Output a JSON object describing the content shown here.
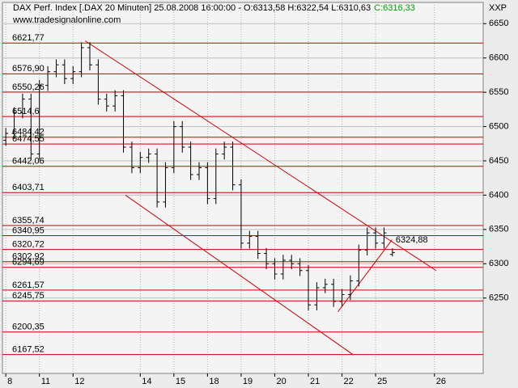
{
  "chart_data": {
    "type": "ohlc",
    "title": "DAX Perf. Index [.DAX  20 Minuten] 25.08.2008 16:00:00 - O:6313,58 H:6322,54 L:6310,63",
    "close_label": "C:6316,33",
    "subtitle": "www.tradesignalonline.com",
    "corner_label": "XXP",
    "color": "#000000",
    "line_color": "#cc0000",
    "close_label_color": "#00a000",
    "grid": true,
    "xlim": [
      -0.1,
      14.2
    ],
    "ylim": [
      6140,
      6681
    ],
    "xticks": [
      {
        "value": 0,
        "label": "8"
      },
      {
        "value": 1,
        "label": "11"
      },
      {
        "value": 2,
        "label": "12"
      },
      {
        "value": 4,
        "label": "14"
      },
      {
        "value": 5,
        "label": "15"
      },
      {
        "value": 6,
        "label": "18"
      },
      {
        "value": 7,
        "label": "19"
      },
      {
        "value": 8,
        "label": "20"
      },
      {
        "value": 9,
        "label": "21"
      },
      {
        "value": 10,
        "label": "22"
      },
      {
        "value": 11,
        "label": "25"
      },
      {
        "value": 12.75,
        "label": "26"
      }
    ],
    "yticks": [
      6250,
      6300,
      6350,
      6400,
      6450,
      6500,
      6550,
      6600,
      6650
    ],
    "x": [
      0,
      0.25,
      0.5,
      0.75,
      1,
      1.25,
      1.5,
      1.75,
      2,
      2.25,
      2.5,
      2.75,
      3,
      3.25,
      3.5,
      3.75,
      4,
      4.25,
      4.5,
      4.75,
      5,
      5.25,
      5.5,
      5.75,
      6,
      6.25,
      6.5,
      6.75,
      7,
      7.25,
      7.5,
      7.75,
      8,
      8.25,
      8.5,
      8.75,
      9,
      9.25,
      9.5,
      9.75,
      10,
      10.25,
      10.5,
      10.75,
      11,
      11.25,
      11.5
    ],
    "open": [
      6480,
      6490,
      6520,
      6540,
      6460,
      6560,
      6580,
      6590,
      6570,
      6580,
      6615,
      6590,
      6540,
      6530,
      6545,
      6470,
      6440,
      6455,
      6460,
      6390,
      6440,
      6500,
      6470,
      6430,
      6440,
      6395,
      6460,
      6470,
      6415,
      6330,
      6340,
      6315,
      6300,
      6285,
      6305,
      6300,
      6290,
      6240,
      6265,
      6270,
      6245,
      6255,
      6275,
      6320,
      6345,
      6330,
      6313.58
    ],
    "high": [
      6498,
      6528,
      6548,
      6548,
      6568,
      6588,
      6598,
      6598,
      6588,
      6623,
      6623,
      6598,
      6548,
      6553,
      6553,
      6478,
      6463,
      6468,
      6468,
      6448,
      6508,
      6508,
      6478,
      6448,
      6448,
      6468,
      6478,
      6478,
      6423,
      6348,
      6348,
      6323,
      6308,
      6313,
      6313,
      6308,
      6298,
      6273,
      6278,
      6278,
      6263,
      6283,
      6328,
      6353,
      6353,
      6353,
      6322.54
    ],
    "low": [
      6472,
      6482,
      6512,
      6452,
      6452,
      6552,
      6572,
      6562,
      6562,
      6572,
      6582,
      6532,
      6522,
      6522,
      6462,
      6432,
      6432,
      6447,
      6382,
      6382,
      6432,
      6462,
      6422,
      6422,
      6387,
      6387,
      6452,
      6407,
      6322,
      6322,
      6307,
      6292,
      6277,
      6277,
      6292,
      6282,
      6232,
      6232,
      6257,
      6237,
      6237,
      6247,
      6267,
      6312,
      6322,
      6322,
      6310.63
    ],
    "close": [
      6490,
      6520,
      6540,
      6460,
      6560,
      6580,
      6590,
      6570,
      6580,
      6615,
      6590,
      6540,
      6530,
      6545,
      6470,
      6440,
      6455,
      6460,
      6390,
      6440,
      6500,
      6470,
      6430,
      6440,
      6395,
      6460,
      6470,
      6415,
      6330,
      6340,
      6315,
      6300,
      6285,
      6305,
      6300,
      6290,
      6240,
      6265,
      6270,
      6245,
      6255,
      6275,
      6320,
      6345,
      6330,
      6345,
      6316.33
    ],
    "levels": [
      {
        "value": 6621.77,
        "label": "6621,77"
      },
      {
        "value": 6576.9,
        "label": "6576,90"
      },
      {
        "value": 6550.26,
        "label": "6550,26"
      },
      {
        "value": 6514.6,
        "label": "6514,6"
      },
      {
        "value": 6484.42,
        "label": "6484,42"
      },
      {
        "value": 6474.55,
        "label": "6474,55"
      },
      {
        "value": 6442.06,
        "label": "6442,06"
      },
      {
        "value": 6403.71,
        "label": "6403,71"
      },
      {
        "value": 6355.74,
        "label": "6355,74"
      },
      {
        "value": 6340.95,
        "label": "6340,95"
      },
      {
        "value": 6320.72,
        "label": "6320,72"
      },
      {
        "value": 6302.92,
        "label": "6302,92"
      },
      {
        "value": 6294.69,
        "label": "6294,69"
      },
      {
        "value": 6261.57,
        "label": "6261,57"
      },
      {
        "value": 6245.75,
        "label": "6245,75"
      },
      {
        "value": 6200.35,
        "label": "6200,35"
      },
      {
        "value": 6167.52,
        "label": "6167,52"
      }
    ],
    "trend_label": {
      "value": 6324.88,
      "label": "6324,88"
    },
    "trendlines": [
      {
        "x": [
          2.36,
          12.8
        ],
        "y": [
          6625,
          6290
        ]
      },
      {
        "x": [
          3.56,
          10.34
        ],
        "y": [
          6400,
          6167
        ]
      },
      {
        "x": [
          9.88,
          11.49
        ],
        "y": [
          6230,
          6335
        ]
      }
    ]
  }
}
